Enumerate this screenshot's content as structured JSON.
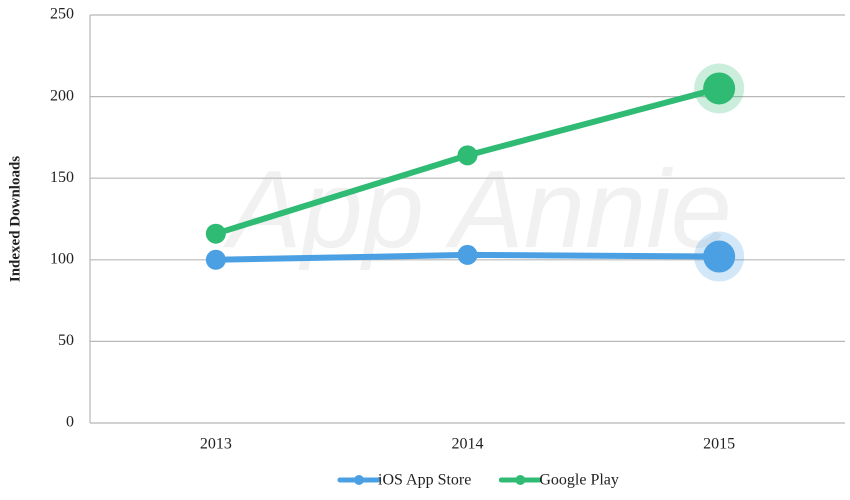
{
  "chart_data": {
    "type": "line",
    "watermark": "App Annie",
    "y_label": "Indexed Downloads",
    "categories": [
      "2013",
      "2014",
      "2015"
    ],
    "series": [
      {
        "name": "iOS App Store",
        "color": "#4aa0e2",
        "values": [
          100,
          103,
          102
        ]
      },
      {
        "name": "Google Play",
        "color": "#2fbb74",
        "values": [
          116,
          164,
          205
        ]
      }
    ],
    "ylim": [
      0,
      250
    ],
    "yticks": [
      0,
      50,
      100,
      150,
      200,
      250
    ],
    "grid": true,
    "legend": "bottom"
  }
}
